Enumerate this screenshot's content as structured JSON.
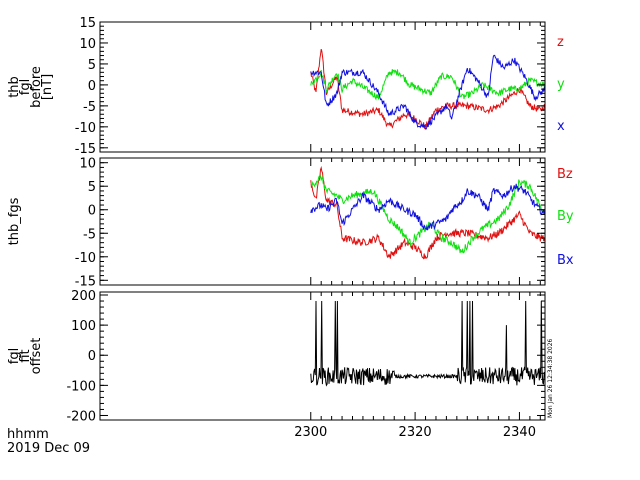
{
  "colors": {
    "red": "#e01010",
    "green": "#10e010",
    "blue": "#1010e0",
    "black": "#000000"
  },
  "footer": {
    "line1": "hhmm",
    "line2": "2019 Dec 09"
  },
  "stamp": "Mon Jan 26 12:34:38 2026",
  "chart_data": [
    {
      "type": "line",
      "panel": "top",
      "ylabel": [
        "thb",
        "fgl",
        "before",
        "[nT]"
      ],
      "ylim": [
        -16,
        15
      ],
      "yticks": [
        15,
        10,
        5,
        0,
        -5,
        -10,
        -15
      ],
      "xlim": [
        2259.6,
        2344.9
      ],
      "xticks": [
        2300,
        2320,
        2340
      ],
      "grid": false,
      "legend_position": "right",
      "series": [
        {
          "name": "z",
          "color": "#e01010",
          "x": [
            2300,
            2301,
            2302,
            2303,
            2305,
            2306,
            2310,
            2313,
            2315,
            2318,
            2320,
            2322,
            2324,
            2326,
            2330,
            2334,
            2336,
            2338,
            2340,
            2342,
            2344,
            2344.9
          ],
          "y": [
            3,
            -2,
            9,
            -2,
            2,
            -6,
            -7,
            -6,
            -10,
            -7,
            -8,
            -10,
            -6,
            -5,
            -5,
            -6,
            -5,
            -3,
            -1,
            -5,
            -6,
            -5
          ]
        },
        {
          "name": "y",
          "color": "#10e010",
          "x": [
            2300,
            2302,
            2303,
            2305,
            2306,
            2308,
            2313,
            2315,
            2317,
            2319,
            2321,
            2323,
            2325,
            2327,
            2329,
            2331,
            2333,
            2336,
            2338,
            2340,
            2342,
            2344.9
          ],
          "y": [
            0,
            3,
            -1,
            3,
            -1,
            1,
            -3,
            3,
            3,
            0,
            -1,
            -2,
            2,
            2,
            -3,
            -2,
            0,
            -2,
            -1,
            -1,
            1,
            0
          ]
        },
        {
          "name": "x",
          "color": "#1010e0",
          "x": [
            2300,
            2302,
            2303,
            2305,
            2306,
            2310,
            2313,
            2315,
            2318,
            2320,
            2322,
            2326,
            2327,
            2329,
            2330,
            2332,
            2334,
            2335,
            2337,
            2339,
            2341,
            2343,
            2344.9
          ],
          "y": [
            3,
            3,
            -5,
            -2,
            3,
            3,
            -2,
            -7,
            -5,
            -9,
            -10,
            -5,
            -8,
            0,
            4,
            1,
            -3,
            7,
            4,
            6,
            2,
            -3,
            -1
          ]
        }
      ]
    },
    {
      "type": "line",
      "panel": "middle",
      "ylabel": [
        "thb_fgs"
      ],
      "ylim": [
        -16,
        11
      ],
      "yticks": [
        10,
        5,
        0,
        -5,
        -10,
        -15
      ],
      "xlim": [
        2259.6,
        2344.9
      ],
      "xticks": [
        2300,
        2320,
        2340
      ],
      "grid": false,
      "legend_position": "right",
      "series": [
        {
          "name": "Bz",
          "color": "#e01010",
          "x": [
            2300,
            2301,
            2302,
            2303,
            2305,
            2306,
            2310,
            2313,
            2315,
            2318,
            2320,
            2322,
            2324,
            2326,
            2330,
            2334,
            2336,
            2338,
            2340,
            2342,
            2344,
            2344.9
          ],
          "y": [
            6,
            2,
            9,
            2,
            1,
            -6,
            -7,
            -6,
            -10,
            -7,
            -8,
            -10,
            -6,
            -5,
            -5,
            -6,
            -5,
            -3,
            -1,
            -5,
            -6,
            -6
          ]
        },
        {
          "name": "By",
          "color": "#10e010",
          "x": [
            2300,
            2302,
            2303,
            2305,
            2306,
            2308,
            2312,
            2315,
            2317,
            2319,
            2321,
            2323,
            2325,
            2327,
            2329,
            2331,
            2333,
            2336,
            2338,
            2340,
            2342,
            2344.9
          ],
          "y": [
            5,
            7,
            4,
            3,
            2,
            3,
            4,
            -2,
            -4,
            -7,
            -5,
            -3,
            -6,
            -7,
            -9,
            -6,
            -4,
            -2,
            1,
            6,
            5,
            -1
          ]
        },
        {
          "name": "Bx",
          "color": "#1010e0",
          "x": [
            2300,
            2302,
            2303,
            2305,
            2306,
            2310,
            2313,
            2315,
            2318,
            2320,
            2322,
            2326,
            2327,
            2329,
            2330,
            2332,
            2334,
            2335,
            2337,
            2339,
            2341,
            2343,
            2344.9
          ],
          "y": [
            0,
            1,
            0,
            2,
            -3,
            3,
            0,
            2,
            0,
            -1,
            -4,
            -2,
            0,
            2,
            4,
            3,
            0,
            4,
            3,
            5,
            4,
            1,
            -1
          ]
        }
      ]
    },
    {
      "type": "line",
      "panel": "bottom",
      "ylabel": [
        "fgl",
        "fit",
        "offset"
      ],
      "ylim": [
        -215,
        210
      ],
      "yticks": [
        200,
        100,
        0,
        -100,
        -200
      ],
      "xlim": [
        2259.6,
        2344.9
      ],
      "xticks": [
        2300,
        2320,
        2340
      ],
      "xtick_labels": [
        "2300",
        "2320",
        "2340"
      ],
      "grid": false,
      "series": [
        {
          "name": "",
          "color": "#000000",
          "baseline": -70,
          "x": [
            2300,
            2300.6,
            2301,
            2301.8,
            2302.1,
            2302.5,
            2303,
            2304,
            2304.7,
            2305.1,
            2306,
            2308,
            2310,
            2312,
            2314,
            2315.3,
            2317,
            2320,
            2325,
            2328,
            2329,
            2329.5,
            2330,
            2330.5,
            2331,
            2331.5,
            2333,
            2336,
            2337.5,
            2339,
            2341.2,
            2343,
            2344.2,
            2344.9
          ],
          "y": [
            -70,
            -75,
            180,
            -90,
            180,
            -75,
            -60,
            -80,
            180,
            180,
            -70,
            -100,
            -60,
            -90,
            -70,
            -20,
            -70,
            -72,
            -70,
            -72,
            180,
            -110,
            180,
            180,
            180,
            -100,
            -20,
            -70,
            100,
            -80,
            180,
            -80,
            180,
            -70
          ]
        }
      ]
    }
  ]
}
